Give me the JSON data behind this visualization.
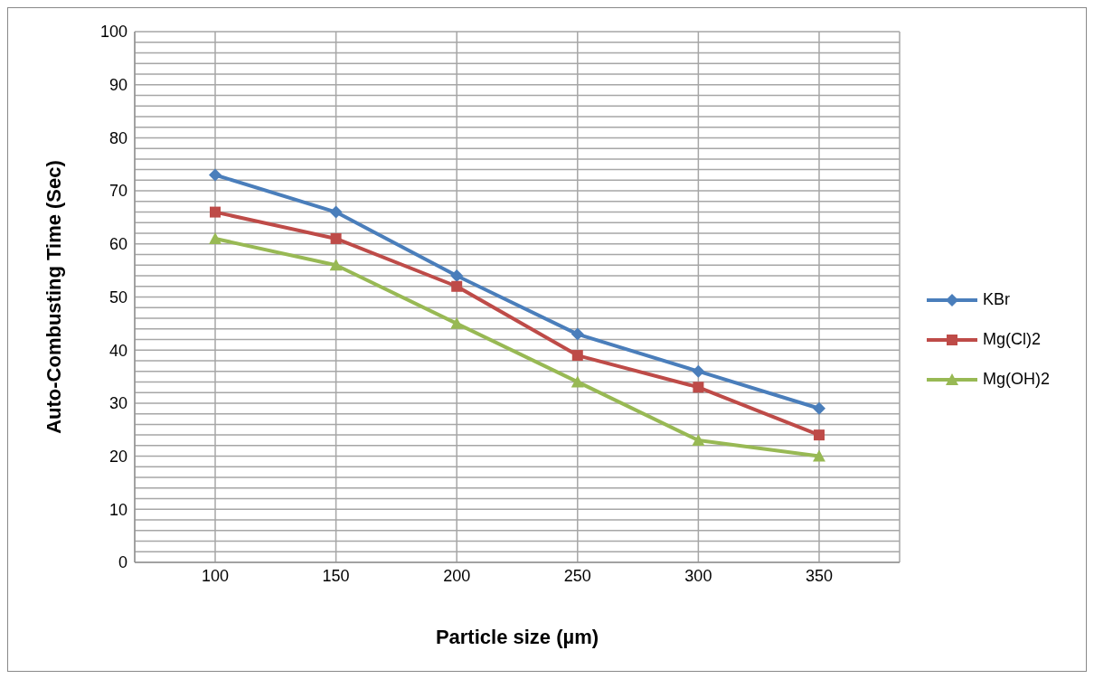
{
  "chart_data": {
    "type": "line",
    "xlabel": "Particle size (µm)",
    "ylabel": "Auto-Combusting Time (Sec)",
    "categories": [
      "100",
      "150",
      "200",
      "250",
      "300",
      "350"
    ],
    "series": [
      {
        "name": "KBr",
        "color": "#4a7ebb",
        "marker": "diamond",
        "values": [
          73,
          66,
          54,
          43,
          36,
          29
        ]
      },
      {
        "name": "Mg(Cl)2",
        "color": "#be4b48",
        "marker": "square",
        "values": [
          66,
          61,
          52,
          39,
          33,
          24
        ]
      },
      {
        "name": "Mg(OH)2",
        "color": "#98b954",
        "marker": "triangle",
        "values": [
          61,
          56,
          45,
          34,
          23,
          20
        ]
      }
    ],
    "ylim": [
      0,
      100
    ],
    "yticks": [
      0,
      {
        "value": 2,
        "label": null
      },
      {
        "value": 4,
        "label": null
      },
      {
        "value": 6,
        "label": null
      },
      {
        "value": 8,
        "label": null
      },
      10,
      {
        "value": 12,
        "label": null
      },
      {
        "value": 14,
        "label": null
      },
      {
        "value": 16,
        "label": null
      },
      {
        "value": 18,
        "label": null
      },
      20,
      {
        "value": 22,
        "label": null
      },
      {
        "value": 24,
        "label": null
      },
      {
        "value": 26,
        "label": null
      },
      {
        "value": 28,
        "label": null
      },
      30,
      {
        "value": 32,
        "label": null
      },
      {
        "value": 34,
        "label": null
      },
      {
        "value": 36,
        "label": null
      },
      {
        "value": 38,
        "label": null
      },
      40,
      {
        "value": 42,
        "label": null
      },
      {
        "value": 44,
        "label": null
      },
      {
        "value": 46,
        "label": null
      },
      {
        "value": 48,
        "label": null
      },
      50,
      {
        "value": 52,
        "label": null
      },
      {
        "value": 54,
        "label": null
      },
      {
        "value": 56,
        "label": null
      },
      {
        "value": 58,
        "label": null
      },
      60,
      {
        "value": 62,
        "label": null
      },
      {
        "value": 64,
        "label": null
      },
      {
        "value": 66,
        "label": null
      },
      {
        "value": 68,
        "label": null
      },
      70,
      {
        "value": 72,
        "label": null
      },
      {
        "value": 74,
        "label": null
      },
      {
        "value": 76,
        "label": null
      },
      {
        "value": 78,
        "label": null
      },
      80,
      {
        "value": 82,
        "label": null
      },
      {
        "value": 84,
        "label": null
      },
      {
        "value": 86,
        "label": null
      },
      {
        "value": 88,
        "label": null
      },
      90,
      {
        "value": 92,
        "label": null
      },
      {
        "value": 94,
        "label": null
      },
      {
        "value": 96,
        "label": null
      },
      {
        "value": 98,
        "label": null
      },
      100
    ],
    "grid": true,
    "legend": "right",
    "line_style": "solid"
  }
}
